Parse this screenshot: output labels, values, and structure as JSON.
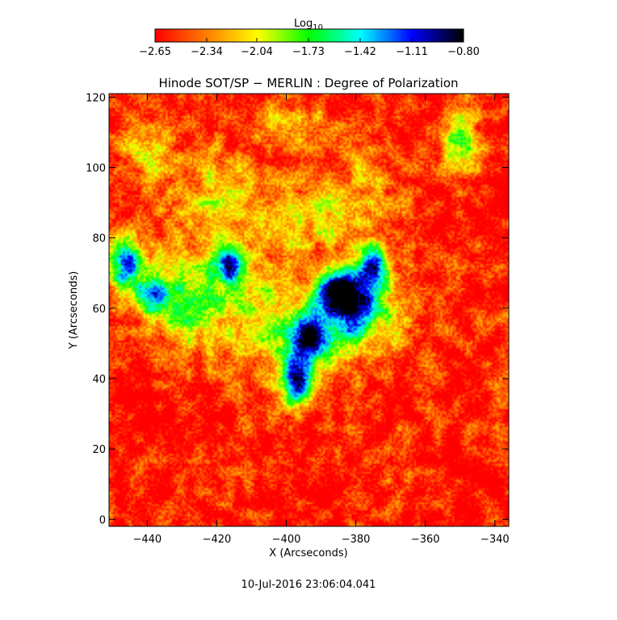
{
  "chart_data": {
    "type": "heatmap",
    "title": "Hinode SOT/SP − MERLIN : Degree of Polarization",
    "xlabel": "X (Arcseconds)",
    "ylabel": "Y (Arcseconds)",
    "xlim": [
      -451,
      -336
    ],
    "ylim": [
      -2,
      121
    ],
    "x_ticks": [
      -440,
      -420,
      -400,
      -380,
      -360,
      -340
    ],
    "x_tick_labels": [
      "−440",
      "−420",
      "−400",
      "−380",
      "−360",
      "−340"
    ],
    "y_ticks": [
      0,
      20,
      40,
      60,
      80,
      100,
      120
    ],
    "y_tick_labels": [
      "0",
      "20",
      "40",
      "60",
      "80",
      "100",
      "120"
    ],
    "colorbar": {
      "label_base": "Log",
      "label_sub": "10",
      "range": [
        -2.65,
        -0.8
      ],
      "ticks": [
        -2.65,
        -2.34,
        -2.04,
        -1.73,
        -1.42,
        -1.11,
        -0.8
      ],
      "tick_labels": [
        "−2.65",
        "−2.34",
        "−2.04",
        "−1.73",
        "−1.42",
        "−1.11",
        "−0.80"
      ],
      "colormap": [
        "#ff0000",
        "#ff8000",
        "#ffff00",
        "#00ff00",
        "#00ffff",
        "#0000ff",
        "#000000"
      ]
    },
    "blobs": [
      {
        "x": -381,
        "y": 60,
        "sx": 4.5,
        "sy": 6,
        "v": -0.85
      },
      {
        "x": -375,
        "y": 71,
        "sx": 3.5,
        "sy": 5,
        "v": -0.95
      },
      {
        "x": -393,
        "y": 52,
        "sx": 3,
        "sy": 4,
        "v": -1.1
      },
      {
        "x": -386,
        "y": 65,
        "sx": 4,
        "sy": 4,
        "v": -0.95
      },
      {
        "x": -446,
        "y": 72,
        "sx": 3.5,
        "sy": 6,
        "v": -1.1
      },
      {
        "x": -438,
        "y": 64,
        "sx": 3,
        "sy": 3,
        "v": -1.3
      },
      {
        "x": -416,
        "y": 72,
        "sx": 3,
        "sy": 3,
        "v": -1.1
      },
      {
        "x": -397,
        "y": 39,
        "sx": 2.5,
        "sy": 5,
        "v": -1.3
      },
      {
        "x": -430,
        "y": 62,
        "sx": 8,
        "sy": 9,
        "v": -1.75
      },
      {
        "x": -410,
        "y": 62,
        "sx": 12,
        "sy": 10,
        "v": -2.0
      },
      {
        "x": -395,
        "y": 48,
        "sx": 9,
        "sy": 9,
        "v": -1.8
      },
      {
        "x": -420,
        "y": 90,
        "sx": 10,
        "sy": 9,
        "v": -2.0
      },
      {
        "x": -388,
        "y": 88,
        "sx": 10,
        "sy": 8,
        "v": -2.0
      },
      {
        "x": -370,
        "y": 55,
        "sx": 6,
        "sy": 8,
        "v": -2.1
      },
      {
        "x": -350,
        "y": 108,
        "sx": 4,
        "sy": 6,
        "v": -1.7
      },
      {
        "x": -440,
        "y": 105,
        "sx": 6,
        "sy": 6,
        "v": -2.1
      },
      {
        "x": -398,
        "y": 113,
        "sx": 8,
        "sy": 4,
        "v": -2.1
      },
      {
        "x": -375,
        "y": 100,
        "sx": 6,
        "sy": 6,
        "v": -2.3
      }
    ],
    "background_value": -2.6,
    "grid": false,
    "legend": "colorbar-top"
  },
  "footer_timestamp": "10-Jul-2016 23:06:04.041"
}
